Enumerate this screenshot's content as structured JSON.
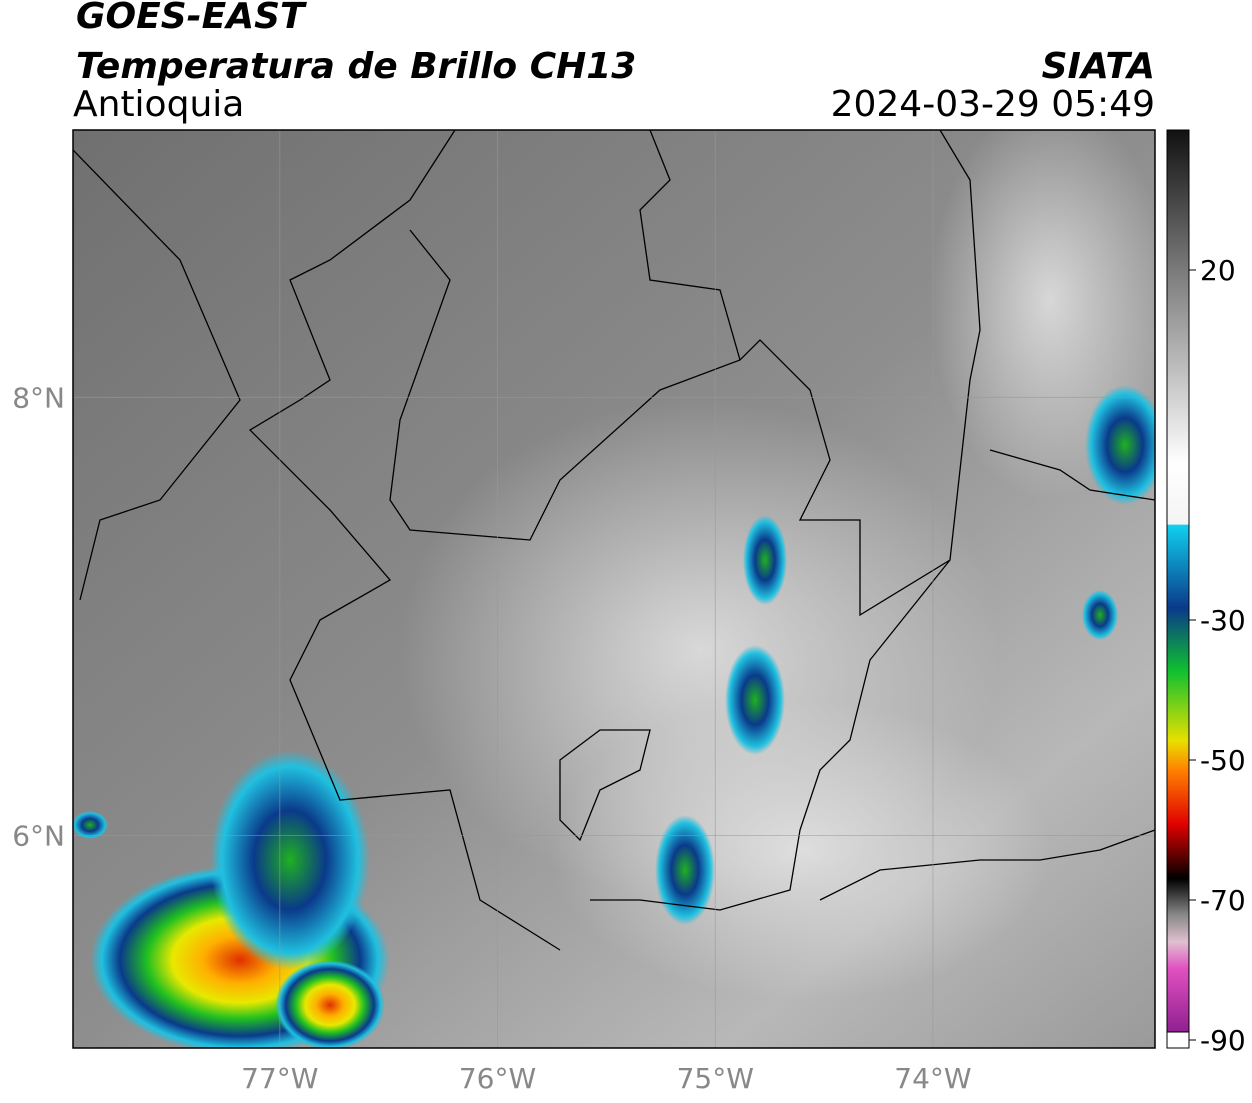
{
  "header": {
    "line1": "GOES-EAST",
    "title": "Temperatura de Brillo CH13",
    "region": "Antioquia",
    "source": "SIATA",
    "datetime": "2024-03-29 05:49"
  },
  "map": {
    "xlim": [
      -77.95,
      -72.98
    ],
    "ylim": [
      5.03,
      9.22
    ],
    "xticks": [
      {
        "value": -77,
        "label": "77°W"
      },
      {
        "value": -76,
        "label": "76°W"
      },
      {
        "value": -75,
        "label": "75°W"
      },
      {
        "value": -74,
        "label": "74°W"
      }
    ],
    "yticks": [
      {
        "value": 8,
        "label": "8°N"
      },
      {
        "value": 6,
        "label": "6°N"
      }
    ]
  },
  "colorbar": {
    "lim": [
      -90,
      40
    ],
    "ticks": [
      20,
      -30,
      -50,
      -70,
      -90
    ]
  }
}
